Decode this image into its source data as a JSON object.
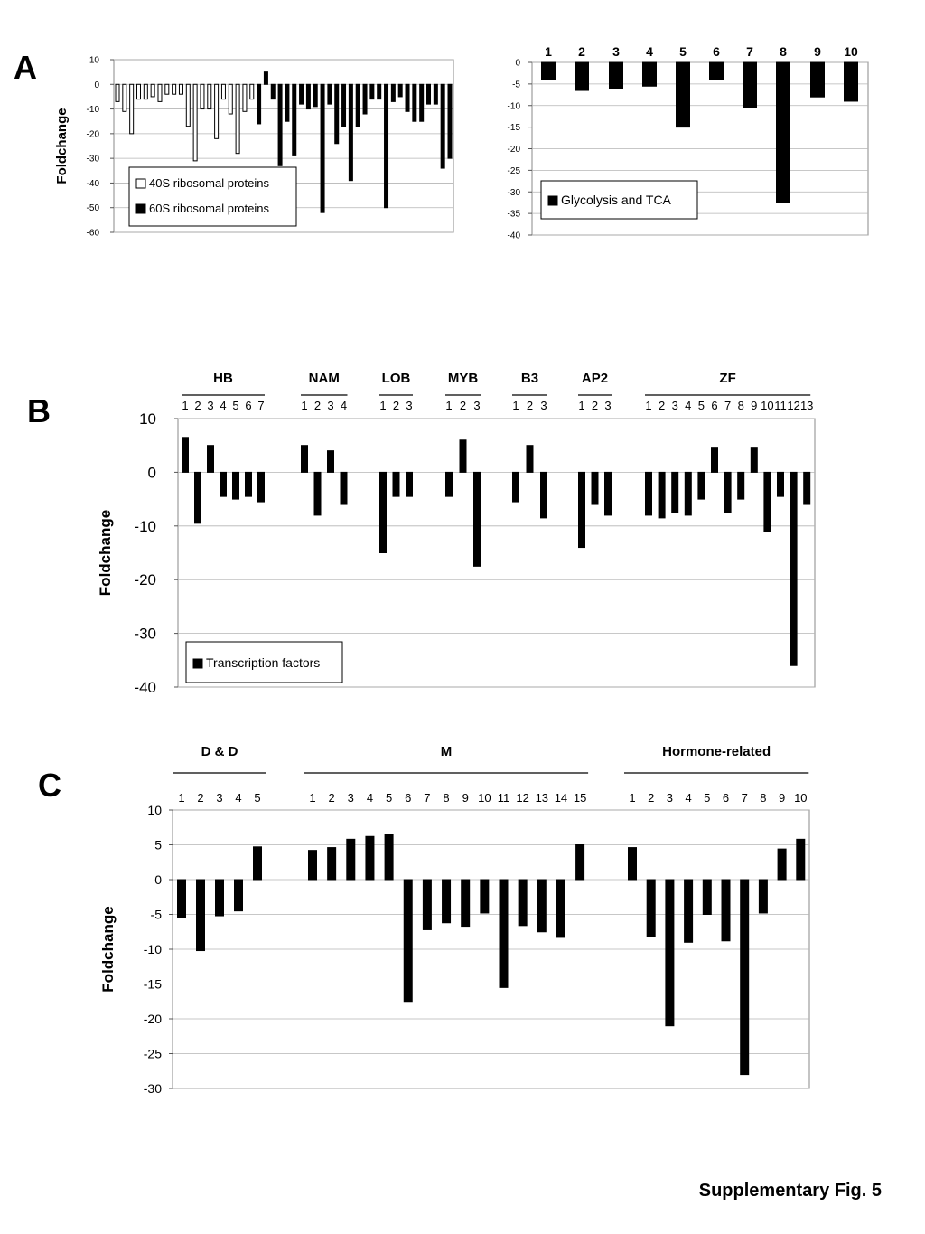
{
  "panels": {
    "a": "A",
    "b": "B",
    "c": "C"
  },
  "figure_caption": "Supplementary Fig. 5",
  "chart_data": [
    {
      "type": "bar",
      "ylabel": "Foldchange",
      "ylim": [
        -60,
        10
      ],
      "yticks": [
        10,
        0,
        -10,
        -20,
        -30,
        -40,
        -50,
        -60
      ],
      "grid": true,
      "legend_position": "bottom-left",
      "legend": [
        {
          "label": "40S ribosomal proteins",
          "color": "#ffffff"
        },
        {
          "label": "60S ribosomal proteins",
          "color": "#000000"
        }
      ],
      "series": [
        {
          "name": "40S ribosomal proteins",
          "fill": "#ffffff",
          "values": [
            -7,
            -11,
            -20,
            -6,
            -6,
            -5,
            -7,
            -4,
            -4,
            -4,
            -17,
            -31,
            -10,
            -10,
            -22,
            -6,
            -12,
            -28,
            -11,
            -6
          ]
        },
        {
          "name": "60S ribosomal proteins",
          "fill": "#000000",
          "values": [
            -16,
            5,
            -6,
            -33,
            -15,
            -29,
            -8,
            -10,
            -9,
            -52,
            -8,
            -24,
            -17,
            -39,
            -17,
            -12,
            -6,
            -6,
            -50,
            -7,
            -5,
            -11,
            -15,
            -15,
            -8,
            -8,
            -34,
            -30
          ]
        }
      ]
    },
    {
      "type": "bar",
      "ylim": [
        -40,
        0
      ],
      "yticks": [
        0,
        -5,
        -10,
        -15,
        -20,
        -25,
        -30,
        -35,
        -40
      ],
      "grid": true,
      "legend_position": "bottom-left",
      "legend": [
        {
          "label": "Glycolysis and TCA",
          "color": "#000000"
        }
      ],
      "categories": [
        "1",
        "2",
        "3",
        "4",
        "5",
        "6",
        "7",
        "8",
        "9",
        "10"
      ],
      "values": [
        -4,
        -6.5,
        -6,
        -5.5,
        -15,
        -4,
        -10.5,
        -32.5,
        -8,
        -9
      ]
    },
    {
      "type": "bar",
      "ylabel": "Foldchange",
      "ylim": [
        -40,
        10
      ],
      "yticks": [
        10,
        0,
        -10,
        -20,
        -30,
        -40
      ],
      "grid": true,
      "legend_position": "bottom-left",
      "legend": [
        {
          "label": "Transcription factors",
          "color": "#000000"
        }
      ],
      "groups": [
        {
          "name": "HB",
          "labels": [
            "1",
            "2",
            "3",
            "4",
            "5",
            "6",
            "7"
          ],
          "values": [
            6.5,
            -9.5,
            5,
            -4.5,
            -5,
            -4.5,
            -5.5
          ]
        },
        {
          "name": "NAM",
          "labels": [
            "1",
            "2",
            "3",
            "4"
          ],
          "values": [
            5,
            -8,
            4,
            -6
          ]
        },
        {
          "name": "LOB",
          "labels": [
            "1",
            "2",
            "3"
          ],
          "values": [
            -15,
            -4.5,
            -4.5
          ]
        },
        {
          "name": "MYB",
          "labels": [
            "1",
            "2",
            "3"
          ],
          "values": [
            -4.5,
            6,
            -17.5
          ]
        },
        {
          "name": "B3",
          "labels": [
            "1",
            "2",
            "3"
          ],
          "values": [
            -5.5,
            5,
            -8.5
          ]
        },
        {
          "name": "AP2",
          "labels": [
            "1",
            "2",
            "3"
          ],
          "values": [
            -14,
            -6,
            -8
          ]
        },
        {
          "name": "ZF",
          "labels": [
            "1",
            "2",
            "3",
            "4",
            "5",
            "6",
            "7",
            "8",
            "9",
            "10",
            "11",
            "12",
            "13"
          ],
          "values": [
            -8,
            -8.5,
            -7.5,
            -8,
            -5,
            4.5,
            -7.5,
            -5,
            4.5,
            -11,
            -4.5,
            -36,
            -6
          ]
        }
      ]
    },
    {
      "type": "bar",
      "ylabel": "Foldchange",
      "ylim": [
        -30,
        10
      ],
      "yticks": [
        10,
        5,
        0,
        -5,
        -10,
        -15,
        -20,
        -25,
        -30
      ],
      "grid": true,
      "groups": [
        {
          "name": "D & D",
          "labels": [
            "1",
            "2",
            "3",
            "4",
            "5"
          ],
          "values": [
            -5.5,
            -10.2,
            -5.2,
            -4.5,
            4.7
          ]
        },
        {
          "name": "M",
          "labels": [
            "1",
            "2",
            "3",
            "4",
            "5",
            "6",
            "7",
            "8",
            "9",
            "10",
            "11",
            "12",
            "13",
            "14",
            "15"
          ],
          "values": [
            4.2,
            4.6,
            5.8,
            6.2,
            6.5,
            -17.5,
            -7.2,
            -6.2,
            -6.7,
            -4.8,
            -15.5,
            -6.6,
            -7.5,
            -8.3,
            5
          ]
        },
        {
          "name": "Hormone-related",
          "labels": [
            "1",
            "2",
            "3",
            "4",
            "5",
            "6",
            "7",
            "8",
            "9",
            "10"
          ],
          "values": [
            4.6,
            -8.2,
            -21,
            -9,
            -5,
            -8.8,
            -28,
            -4.8,
            4.4,
            5.8
          ]
        }
      ]
    }
  ]
}
